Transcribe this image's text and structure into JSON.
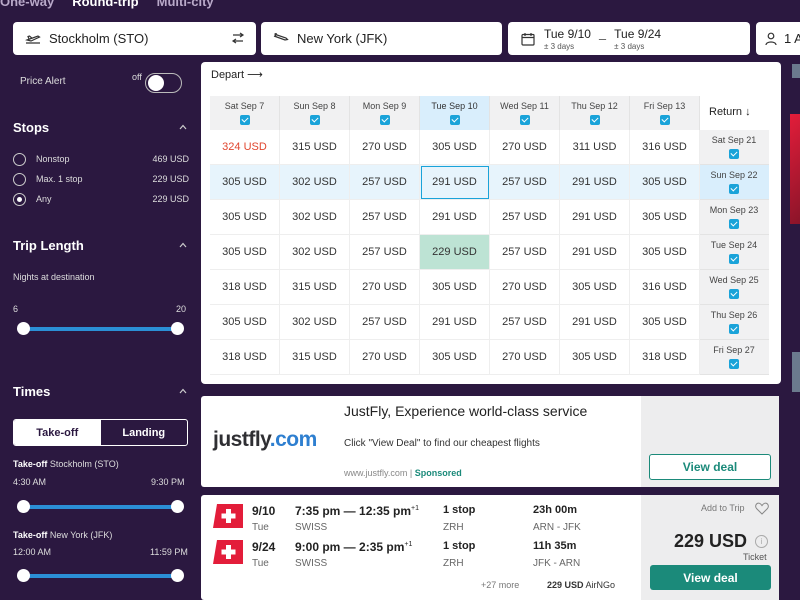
{
  "trip_tabs": [
    "One-way",
    "Round-trip",
    "Multi-city"
  ],
  "search": {
    "origin": "Stockholm (STO)",
    "destination": "New York (JFK)",
    "depart_date": "Tue 9/10",
    "depart_flex": "± 3 days",
    "dash": "–",
    "return_date": "Tue 9/24",
    "return_flex": "± 3 days",
    "travelers": "1 A"
  },
  "sidebar": {
    "price_alert_label": "Price Alert",
    "price_alert_state": "off",
    "stops_title": "Stops",
    "stops": [
      {
        "label": "Nonstop",
        "price": "469 USD",
        "checked": false
      },
      {
        "label": "Max. 1 stop",
        "price": "229 USD",
        "checked": false
      },
      {
        "label": "Any",
        "price": "229 USD",
        "checked": true
      }
    ],
    "trip_length_title": "Trip Length",
    "nights_label": "Nights at destination",
    "nights_min": "6",
    "nights_max": "20",
    "times_title": "Times",
    "times_tabs": [
      "Take-off",
      "Landing"
    ],
    "takeoff_1_prefix": "Take-off",
    "takeoff_1_place": "Stockholm (STO)",
    "takeoff_1_min": "4:30 AM",
    "takeoff_1_max": "9:30 PM",
    "takeoff_2_prefix": "Take-off",
    "takeoff_2_place": "New York (JFK)",
    "takeoff_2_min": "12:00 AM",
    "takeoff_2_max": "11:59 PM"
  },
  "matrix": {
    "depart_label": "Depart",
    "return_label": "Return",
    "depart_dates": [
      "Sat Sep 7",
      "Sun Sep 8",
      "Mon Sep 9",
      "Tue Sep 10",
      "Wed Sep 11",
      "Thu Sep 12",
      "Fri Sep 13"
    ],
    "return_dates": [
      "Sat Sep 21",
      "Sun Sep 22",
      "Mon Sep 23",
      "Tue Sep 24",
      "Wed Sep 25",
      "Thu Sep 26",
      "Fri Sep 27"
    ],
    "prices": [
      [
        "324 USD",
        "315 USD",
        "270 USD",
        "305 USD",
        "270 USD",
        "311 USD",
        "316 USD"
      ],
      [
        "305 USD",
        "302 USD",
        "257 USD",
        "291 USD",
        "257 USD",
        "291 USD",
        "305 USD"
      ],
      [
        "305 USD",
        "302 USD",
        "257 USD",
        "291 USD",
        "257 USD",
        "291 USD",
        "305 USD"
      ],
      [
        "305 USD",
        "302 USD",
        "257 USD",
        "229 USD",
        "257 USD",
        "291 USD",
        "305 USD"
      ],
      [
        "318 USD",
        "315 USD",
        "270 USD",
        "305 USD",
        "270 USD",
        "305 USD",
        "316 USD"
      ],
      [
        "305 USD",
        "302 USD",
        "257 USD",
        "291 USD",
        "257 USD",
        "291 USD",
        "305 USD"
      ],
      [
        "318 USD",
        "315 USD",
        "270 USD",
        "305 USD",
        "270 USD",
        "305 USD",
        "318 USD"
      ]
    ]
  },
  "ad": {
    "logo_main": "justfly",
    "logo_tld": ".com",
    "title": "JustFly, Experience world-class service",
    "subtitle": "Click \"View Deal\" to find our cheapest flights",
    "url": "www.justfly.com",
    "separator": "|",
    "sponsored": "Sponsored",
    "button": "View deal"
  },
  "result": {
    "legs": [
      {
        "date": "9/10",
        "day": "Tue",
        "time": "7:35 pm — 12:35 pm",
        "plus": "+1",
        "airline": "SWISS",
        "stops": "1 stop",
        "via": "ZRH",
        "duration": "23h 00m",
        "route": "ARN - JFK"
      },
      {
        "date": "9/24",
        "day": "Tue",
        "time": "9:00 pm — 2:35 pm",
        "plus": "+1",
        "airline": "SWISS",
        "stops": "1 stop",
        "via": "ZRH",
        "duration": "11h 35m",
        "route": "JFK - ARN"
      }
    ],
    "more": "+27 more",
    "provider_price": "229 USD",
    "provider": "AirNGo",
    "add_to_trip": "Add to Trip",
    "price": "229 USD",
    "ticket": "Ticket",
    "button": "View deal"
  },
  "colors": {
    "background": "#2b1840",
    "accent": "#1b8a7a",
    "slider": "#2b8fd6",
    "highlight": "#d9eefc",
    "best_price": "#bde3d4",
    "checkbox": "#1aa3d9"
  }
}
